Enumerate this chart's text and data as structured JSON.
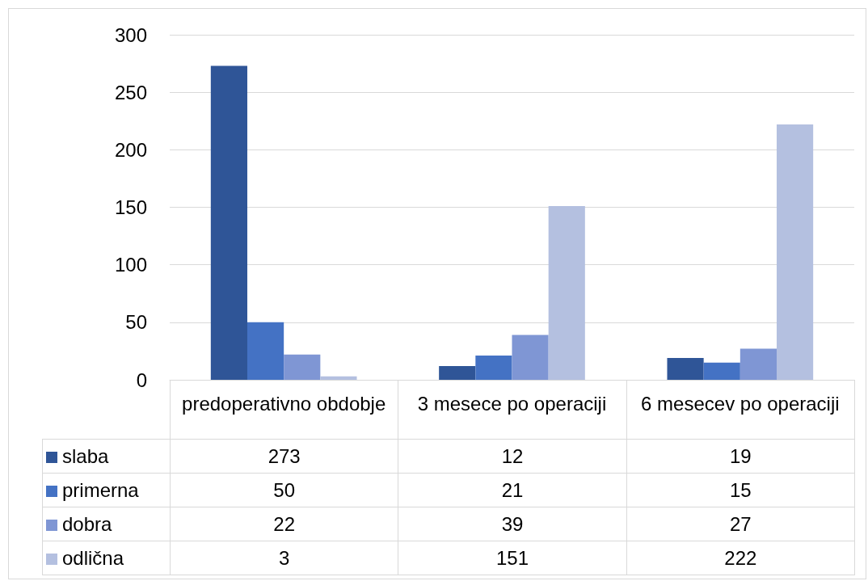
{
  "chart_data": {
    "type": "bar",
    "categories": [
      "predoperativno obdobje",
      "3 mesece po operaciji",
      "6 mesecev po operaciji"
    ],
    "series": [
      {
        "name": "slaba",
        "color": "#2f5597",
        "values": [
          273,
          12,
          19
        ]
      },
      {
        "name": "primerna",
        "color": "#4472c4",
        "values": [
          50,
          21,
          15
        ]
      },
      {
        "name": "dobra",
        "color": "#7f96d4",
        "values": [
          22,
          39,
          27
        ]
      },
      {
        "name": "odlična",
        "color": "#b4c0e0",
        "values": [
          3,
          151,
          222
        ]
      }
    ],
    "ylim": [
      0,
      300
    ],
    "yticks": [
      0,
      50,
      100,
      150,
      200,
      250,
      300
    ],
    "grid": "y",
    "legend": "bottom left",
    "data_labels": true
  }
}
